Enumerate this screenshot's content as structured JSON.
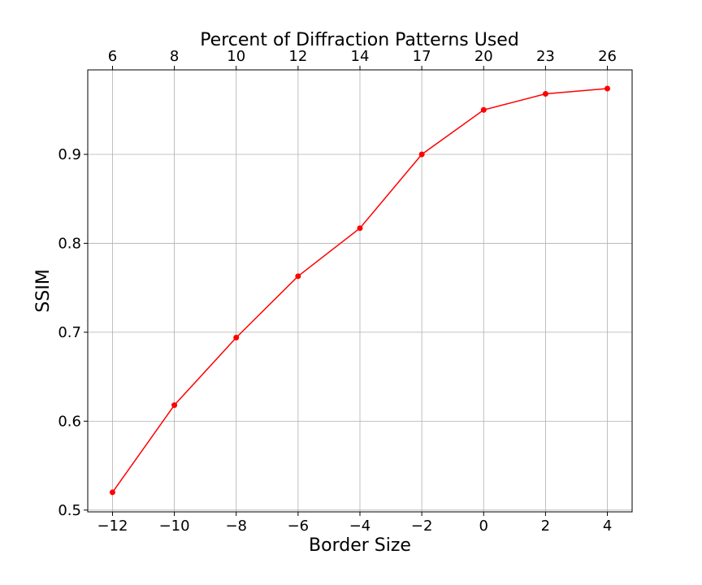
{
  "chart_data": {
    "type": "line",
    "xlabel": "Border Size",
    "ylabel": "SSIM",
    "top_xlabel": "Percent of Diffraction Patterns Used",
    "x": [
      -12,
      -10,
      -8,
      -6,
      -4,
      -2,
      0,
      2,
      4
    ],
    "x_tick_labels": [
      "−12",
      "−10",
      "−8",
      "−6",
      "−4",
      "−2",
      "0",
      "2",
      "4"
    ],
    "top_tick_labels": [
      "6",
      "8",
      "10",
      "12",
      "14",
      "17",
      "20",
      "23",
      "26"
    ],
    "y_ticks": [
      0.5,
      0.6,
      0.7,
      0.8,
      0.9
    ],
    "y_tick_labels": [
      "0.5",
      "0.6",
      "0.7",
      "0.8",
      "0.9"
    ],
    "xlim": [
      -12.8,
      4.8
    ],
    "ylim": [
      0.498,
      0.995
    ],
    "grid": true,
    "series": [
      {
        "values": [
          0.52,
          0.618,
          0.694,
          0.763,
          0.817,
          0.9,
          0.95,
          0.968,
          0.974
        ],
        "color": "#ff0000",
        "marker": "circle"
      }
    ]
  }
}
